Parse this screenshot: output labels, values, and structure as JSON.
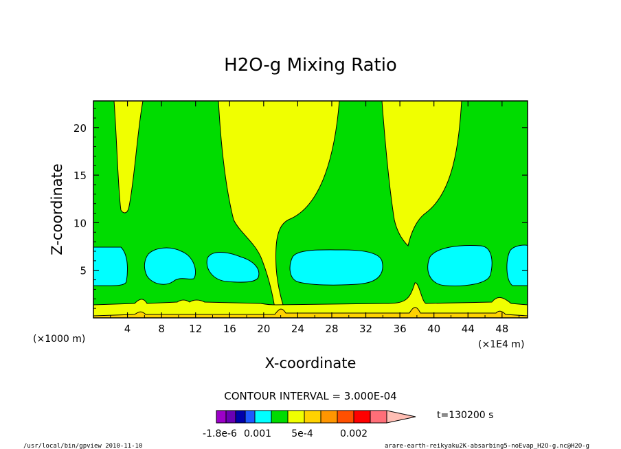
{
  "chart_data": {
    "type": "heatmap",
    "title": "H2O-g Mixing Ratio",
    "xlabel": "X-coordinate",
    "ylabel": "Z-coordinate",
    "x_unit_left": "(×1000 m)",
    "x_unit_right": "(×1E4 m)",
    "xlim": [
      0,
      51
    ],
    "ylim": [
      0,
      22.8
    ],
    "x_ticks": [
      "4",
      "8",
      "12",
      "16",
      "20",
      "24",
      "28",
      "32",
      "36",
      "40",
      "44",
      "48"
    ],
    "y_ticks": [
      "5",
      "10",
      "15",
      "20"
    ],
    "contour_interval": "CONTOUR INTERVAL = 3.000E-04",
    "time_label": "t=130200 s",
    "colorbar_labels": [
      "-1.8e-6",
      "0.001",
      "5e-4",
      "0.002"
    ],
    "colorbar_colors": [
      "#9c00c8",
      "#6a00b4",
      "#0000aa",
      "#1e5aff",
      "#00ffff",
      "#00dc00",
      "#f0ff00",
      "#ffd200",
      "#ff9600",
      "#ff5000",
      "#ff0000",
      "#ff6e78",
      "#ffbeb4"
    ],
    "field_colors": {
      "band_cyan": "#00ffff",
      "band_green": "#00dc00",
      "band_yellow": "#f0ff00",
      "band_gold": "#ffd200",
      "band_orange": "#ff9600"
    },
    "footer_left": "/usr/local/bin/gpview  2010-11-10",
    "footer_right": "arare-earth-reikyaku2K-absarbing5-noEvap_H2O-g.nc@H2O-g"
  }
}
